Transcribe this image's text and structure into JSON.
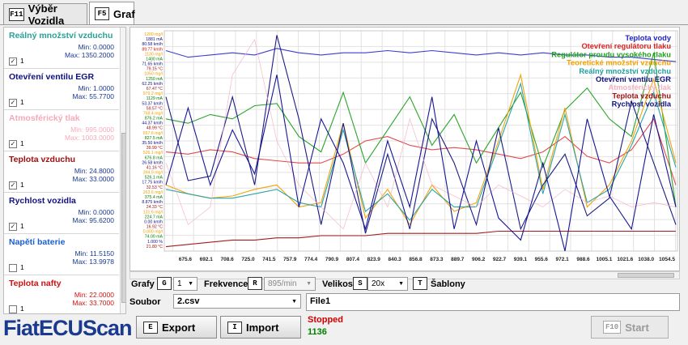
{
  "tabs": [
    {
      "key": "F11",
      "label": "Výběr Vozidla"
    },
    {
      "key": "F5",
      "label": "Graf"
    }
  ],
  "signals": [
    {
      "name": "Reálný množství vzduchu",
      "min": "Min: 0.0000",
      "max": "Max: 1350.2000",
      "checked": true,
      "num": "1",
      "color": "#2aa198"
    },
    {
      "name": "Otevření ventilu EGR",
      "min": "Min: 1.0000",
      "max": "Max: 55.7700",
      "checked": true,
      "num": "1",
      "color": "#101080"
    },
    {
      "name": "Atmosférický tlak",
      "min": "Min: 995.0000",
      "max": "Max: 1003.0000",
      "checked": true,
      "num": "1",
      "color": "#f5aab8"
    },
    {
      "name": "Teplota vzduchu",
      "min": "Min: 24.8000",
      "max": "Max: 33.0000",
      "checked": true,
      "num": "1",
      "color": "#a01010"
    },
    {
      "name": "Rychlost vozidla",
      "min": "Min: 0.0000",
      "max": "Max: 95.6200",
      "checked": true,
      "num": "1",
      "color": "#101080"
    },
    {
      "name": "Napětí baterie",
      "min": "Min: 11.5150",
      "max": "Max: 13.9978",
      "checked": false,
      "num": "1",
      "color": "#1a5fd0"
    },
    {
      "name": "Teplota nafty",
      "min": "Min: 22.0000",
      "max": "Max: 33.7000",
      "checked": false,
      "num": "1",
      "color": "#d01010"
    }
  ],
  "chart_data": {
    "type": "line",
    "x_ticks": [
      "675.6",
      "692.1",
      "708.6",
      "725.0",
      "741.5",
      "757.9",
      "774.4",
      "790.9",
      "807.4",
      "823.9",
      "840.3",
      "856.8",
      "873.3",
      "889.7",
      "906.2",
      "922.7",
      "939.1",
      "955.6",
      "972.1",
      "988.6",
      "1005.1",
      "1021.6",
      "1038.0",
      "1054.5"
    ],
    "y_labels": [
      {
        "text": "1200 mg/l",
        "color": "#f0a000"
      },
      {
        "text": "1881 mA",
        "color": "#101080"
      },
      {
        "text": "80.58 km/h",
        "color": "#101080"
      },
      {
        "text": "89.77 km/h",
        "color": "#d01010"
      },
      {
        "text": "1130 mg/l",
        "color": "#f0a000"
      },
      {
        "text": "1400 mA",
        "color": "#008000"
      },
      {
        "text": "71.65 km/h",
        "color": "#101080"
      },
      {
        "text": "79.15 °C",
        "color": "#a01010"
      },
      {
        "text": "1050 mg/l",
        "color": "#f0a000"
      },
      {
        "text": "1250 mA",
        "color": "#008000"
      },
      {
        "text": "62.25 km/h",
        "color": "#101080"
      },
      {
        "text": "67.47 °C",
        "color": "#a01010"
      },
      {
        "text": "979.2 mg/l",
        "color": "#f0a000"
      },
      {
        "text": "1129 mA",
        "color": "#008000"
      },
      {
        "text": "53.37 km/h",
        "color": "#101080"
      },
      {
        "text": "59.57 °C",
        "color": "#a01010"
      },
      {
        "text": "768.4 mg/l",
        "color": "#f0a000"
      },
      {
        "text": "876.2 mA",
        "color": "#008000"
      },
      {
        "text": "44.37 km/h",
        "color": "#101080"
      },
      {
        "text": "48.99 °C",
        "color": "#a01010"
      },
      {
        "text": "657.6 mg/l",
        "color": "#f0a000"
      },
      {
        "text": "827.5 mA",
        "color": "#008000"
      },
      {
        "text": "35.50 km/h",
        "color": "#101080"
      },
      {
        "text": "39.99 °C",
        "color": "#a01010"
      },
      {
        "text": "526.1 mg/l",
        "color": "#f0a000"
      },
      {
        "text": "676.8 mA",
        "color": "#008000"
      },
      {
        "text": "26.58 km/h",
        "color": "#101080"
      },
      {
        "text": "41.16 °C",
        "color": "#a01010"
      },
      {
        "text": "394.9 mg/l",
        "color": "#f0a000"
      },
      {
        "text": "526.1 mA",
        "color": "#008000"
      },
      {
        "text": "17.75 km/h",
        "color": "#101080"
      },
      {
        "text": "32.53 °C",
        "color": "#a01010"
      },
      {
        "text": "263.6 mg/l",
        "color": "#f0a000"
      },
      {
        "text": "375.4 mA",
        "color": "#008000"
      },
      {
        "text": "8.875 km/h",
        "color": "#101080"
      },
      {
        "text": "24.33 °C",
        "color": "#a01010"
      },
      {
        "text": "131.6 mg/l",
        "color": "#f0a000"
      },
      {
        "text": "224.7 mA",
        "color": "#008000"
      },
      {
        "text": "0.00 km/h",
        "color": "#101080"
      },
      {
        "text": "16.92 °C",
        "color": "#a01010"
      },
      {
        "text": "0.000 mg/l",
        "color": "#f0a000"
      },
      {
        "text": "74.00 mA",
        "color": "#008000"
      },
      {
        "text": "1.000 %",
        "color": "#101080"
      },
      {
        "text": "21.80 °C",
        "color": "#a01010"
      }
    ],
    "legend": [
      {
        "name": "Teplota vody",
        "color": "#2020d0"
      },
      {
        "name": "Otevření regulátoru tlaku",
        "color": "#e02020"
      },
      {
        "name": "Regulátor proudu vysokého tlaku",
        "color": "#20a020"
      },
      {
        "name": "Teoretické množství vzduchu",
        "color": "#f0a000"
      },
      {
        "name": "Reálný množství vzduchu",
        "color": "#20a0a0"
      },
      {
        "name": "Otevření ventilu EGR",
        "color": "#101080"
      },
      {
        "name": "Atmosférický tlak",
        "color": "#f5b0c0"
      },
      {
        "name": "Teplota vzduchu",
        "color": "#a01010"
      },
      {
        "name": "Rychlost vozidla",
        "color": "#101080"
      }
    ],
    "series": [
      {
        "name": "Teplota vody",
        "color": "#3030d0",
        "values": [
          91,
          88,
          89,
          90,
          89,
          92,
          90,
          89,
          90,
          90,
          91,
          90,
          91,
          90,
          89,
          90,
          89,
          90,
          89,
          89,
          88,
          88,
          87,
          86
        ]
      },
      {
        "name": "Otevření regulátoru tlaku",
        "color": "#e04040",
        "values": [
          45,
          44,
          46,
          45,
          42,
          41,
          40,
          40,
          44,
          50,
          52,
          48,
          46,
          47,
          46,
          44,
          42,
          45,
          52,
          43,
          40,
          46,
          60,
          30
        ]
      },
      {
        "name": "Regulátor proudu vysokého tlaku",
        "color": "#20a020",
        "values": [
          60,
          58,
          62,
          60,
          66,
          67,
          52,
          45,
          72,
          40,
          55,
          70,
          48,
          62,
          40,
          56,
          72,
          38,
          64,
          74,
          60,
          52,
          90,
          20
        ]
      },
      {
        "name": "Teoretické množství vzduchu",
        "color": "#f0a000",
        "values": [
          30,
          26,
          24,
          25,
          28,
          30,
          20,
          22,
          58,
          15,
          28,
          12,
          30,
          18,
          22,
          50,
          80,
          28,
          65,
          20,
          30,
          50,
          78,
          40
        ]
      },
      {
        "name": "Reálný množství vzduchu",
        "color": "#20a0a0",
        "values": [
          28,
          26,
          24,
          24,
          26,
          28,
          22,
          20,
          55,
          18,
          26,
          14,
          28,
          20,
          20,
          48,
          76,
          26,
          62,
          22,
          28,
          48,
          72,
          38
        ]
      },
      {
        "name": "Otevření ventilu EGR",
        "color": "#101080",
        "values": [
          70,
          32,
          34,
          70,
          30,
          98,
          60,
          12,
          58,
          8,
          44,
          10,
          60,
          40,
          12,
          56,
          10,
          30,
          44,
          16,
          24,
          68,
          40,
          12
        ]
      },
      {
        "name": "Atmosférický tlak",
        "color": "#f5b0c0",
        "values": [
          40,
          12,
          20,
          80,
          96,
          50,
          30,
          20,
          10,
          40,
          20,
          60,
          30,
          25,
          20,
          30,
          25,
          20,
          28,
          22,
          25,
          20,
          22,
          20
        ]
      },
      {
        "name": "Teplota vzduchu",
        "color": "#a01010",
        "values": [
          2,
          3,
          4,
          5,
          5,
          6,
          6,
          7,
          7,
          7,
          8,
          8,
          8,
          8,
          8,
          9,
          9,
          9,
          9,
          9,
          9,
          9,
          9,
          9
        ]
      },
      {
        "name": "Rychlost vozidla",
        "color": "#0a0a90",
        "values": [
          30,
          65,
          30,
          55,
          35,
          80,
          20,
          60,
          40,
          10,
          50,
          20,
          70,
          10,
          50,
          15,
          5,
          40,
          0,
          60,
          25,
          10,
          62,
          20
        ]
      }
    ]
  },
  "controls": {
    "grafy_label": "Grafy",
    "grafy_key": "G",
    "grafy_value": "1",
    "frekvence_label": "Frekvence",
    "frekvence_key": "R",
    "frekvence_value": "895/min",
    "velikost_label": "Velikost",
    "velikost_key": "S",
    "velikost_value": "20x",
    "sablony_key": "T",
    "sablony_label": "Šablony"
  },
  "bottom": {
    "soubor_label": "Soubor",
    "soubor_value": "2.csv",
    "export_key": "E",
    "export_label": "Export",
    "import_key": "I",
    "import_label": "Import",
    "file_name": "File1",
    "status": "Stopped",
    "count": "1136",
    "start_key": "F10",
    "start_label": "Start"
  },
  "logo": "FiatECUScan"
}
